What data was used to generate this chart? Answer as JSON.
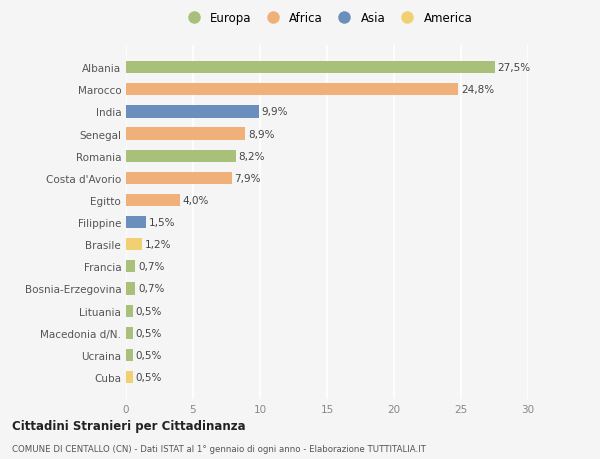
{
  "countries": [
    "Albania",
    "Marocco",
    "India",
    "Senegal",
    "Romania",
    "Costa d'Avorio",
    "Egitto",
    "Filippine",
    "Brasile",
    "Francia",
    "Bosnia-Erzegovina",
    "Lituania",
    "Macedonia d/N.",
    "Ucraina",
    "Cuba"
  ],
  "values": [
    27.5,
    24.8,
    9.9,
    8.9,
    8.2,
    7.9,
    4.0,
    1.5,
    1.2,
    0.7,
    0.7,
    0.5,
    0.5,
    0.5,
    0.5
  ],
  "labels": [
    "27,5%",
    "24,8%",
    "9,9%",
    "8,9%",
    "8,2%",
    "7,9%",
    "4,0%",
    "1,5%",
    "1,2%",
    "0,7%",
    "0,7%",
    "0,5%",
    "0,5%",
    "0,5%",
    "0,5%"
  ],
  "colors": [
    "#a8c07a",
    "#f0b07a",
    "#6a8fbd",
    "#f0b07a",
    "#a8c07a",
    "#f0b07a",
    "#f0b07a",
    "#6a8fbd",
    "#f0d070",
    "#a8c07a",
    "#a8c07a",
    "#a8c07a",
    "#a8c07a",
    "#a8c07a",
    "#f0d070"
  ],
  "legend_labels": [
    "Europa",
    "Africa",
    "Asia",
    "America"
  ],
  "legend_colors": [
    "#a8c07a",
    "#f0b07a",
    "#6a8fbd",
    "#f0d070"
  ],
  "xlim": [
    0,
    30
  ],
  "xticks": [
    0,
    5,
    10,
    15,
    20,
    25,
    30
  ],
  "title": "Cittadini Stranieri per Cittadinanza",
  "subtitle": "COMUNE DI CENTALLO (CN) - Dati ISTAT al 1° gennaio di ogni anno - Elaborazione TUTTITALIA.IT",
  "background_color": "#f5f5f5",
  "grid_color": "#ffffff",
  "bar_height": 0.55,
  "label_fontsize": 7.5,
  "ytick_fontsize": 7.5,
  "xtick_fontsize": 7.5
}
